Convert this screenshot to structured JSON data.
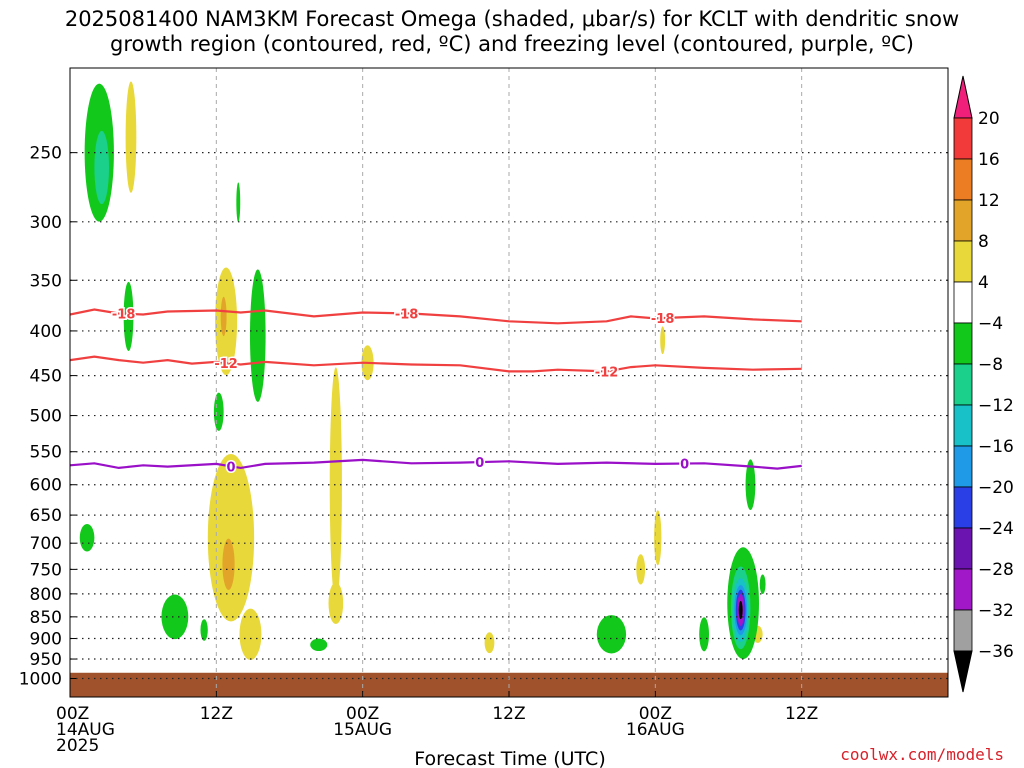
{
  "header": {
    "title_line1": "2025081400 NAM3KM Forecast Omega (shaded, μbar/s) for KCLT with dendritic snow",
    "title_line2": "growth region (contoured, red, ºC) and freezing level (contoured, purple, ºC)"
  },
  "footer": {
    "credit": "coolwx.com/models"
  },
  "chart_data": {
    "type": "heatmap",
    "xlabel": "Forecast Time (UTC)",
    "ylabel": "",
    "xlim": [
      0,
      36
    ],
    "ylim": [
      1050,
      200
    ],
    "y_scale": "log-pressure",
    "grid": true,
    "x_ticks": [
      {
        "x": 0,
        "lines": [
          "00Z",
          "14AUG",
          "2025"
        ]
      },
      {
        "x": 6,
        "lines": [
          "12Z"
        ]
      },
      {
        "x": 12,
        "lines": [
          "00Z",
          "15AUG"
        ]
      },
      {
        "x": 18,
        "lines": [
          "12Z"
        ]
      },
      {
        "x": 24,
        "lines": [
          "00Z",
          "16AUG"
        ]
      },
      {
        "x": 30,
        "lines": [
          "12Z"
        ]
      }
    ],
    "y_ticks": [
      250,
      300,
      350,
      400,
      450,
      500,
      550,
      600,
      650,
      700,
      750,
      800,
      850,
      900,
      950,
      1000
    ],
    "colorbar": {
      "labels": [
        "20",
        "16",
        "12",
        "8",
        "4",
        "−4",
        "−8",
        "−12",
        "−16",
        "−20",
        "−24",
        "−28",
        "−32",
        "−36"
      ],
      "colors": [
        "#f0207a",
        "#f23a3a",
        "#ed7d22",
        "#e2a52a",
        "#e8d83a",
        "#ffffff",
        "#12c81a",
        "#1ad08a",
        "#18c0c8",
        "#1f9ae6",
        "#2a40e6",
        "#6c14b0",
        "#a018c8",
        "#a0a0a0",
        "#000000"
      ]
    },
    "contours": [
      {
        "level_label": "-18",
        "color": "#f04040",
        "points": [
          [
            0,
            383
          ],
          [
            1,
            378
          ],
          [
            2,
            382
          ],
          [
            3,
            383
          ],
          [
            4,
            380
          ],
          [
            6,
            379
          ],
          [
            7,
            381
          ],
          [
            8,
            379
          ],
          [
            10,
            385
          ],
          [
            12,
            381
          ],
          [
            14,
            382
          ],
          [
            16,
            385
          ],
          [
            18,
            390
          ],
          [
            20,
            392
          ],
          [
            22,
            390
          ],
          [
            23,
            385
          ],
          [
            24,
            387
          ],
          [
            26,
            385
          ],
          [
            28,
            388
          ],
          [
            30,
            390
          ]
        ],
        "label_x": [
          2.2,
          13.8,
          24.3
        ]
      },
      {
        "level_label": "-12",
        "color": "#f04040",
        "points": [
          [
            0,
            432
          ],
          [
            1,
            428
          ],
          [
            2,
            432
          ],
          [
            3,
            435
          ],
          [
            4,
            432
          ],
          [
            5,
            436
          ],
          [
            6,
            434
          ],
          [
            7,
            437
          ],
          [
            8,
            434
          ],
          [
            10,
            438
          ],
          [
            12,
            435
          ],
          [
            14,
            437
          ],
          [
            16,
            438
          ],
          [
            18,
            445
          ],
          [
            19,
            445
          ],
          [
            20,
            443
          ],
          [
            22,
            445
          ],
          [
            23,
            440
          ],
          [
            24,
            438
          ],
          [
            26,
            441
          ],
          [
            28,
            443
          ],
          [
            30,
            442
          ]
        ],
        "label_x": [
          6.4,
          22.0
        ]
      },
      {
        "level_label": "0",
        "color": "#9a10c8",
        "points": [
          [
            0,
            570
          ],
          [
            1,
            567
          ],
          [
            2,
            574
          ],
          [
            3,
            570
          ],
          [
            4,
            572
          ],
          [
            6,
            568
          ],
          [
            7,
            574
          ],
          [
            8,
            568
          ],
          [
            10,
            566
          ],
          [
            12,
            562
          ],
          [
            14,
            567
          ],
          [
            16,
            566
          ],
          [
            18,
            564
          ],
          [
            20,
            568
          ],
          [
            22,
            566
          ],
          [
            24,
            568
          ],
          [
            26,
            567
          ],
          [
            28,
            572
          ],
          [
            29,
            575
          ],
          [
            30,
            571
          ]
        ],
        "label_x": [
          6.6,
          16.8,
          25.2
        ]
      }
    ],
    "shaded_regions": [
      {
        "level": 4,
        "color": "#e8d83a",
        "x": 2.5,
        "y": 240,
        "rx": 0.22,
        "ry_hpa": 35
      },
      {
        "level": 4,
        "color": "#e8d83a",
        "x": 6.4,
        "y": 390,
        "rx": 0.45,
        "ry_hpa": 55
      },
      {
        "level": 4,
        "color": "#e8d83a",
        "x": 6.6,
        "y": 690,
        "rx": 0.95,
        "ry_hpa": 150
      },
      {
        "level": 4,
        "color": "#e8d83a",
        "x": 7.4,
        "y": 890,
        "rx": 0.45,
        "ry_hpa": 60
      },
      {
        "level": 4,
        "color": "#e8d83a",
        "x": 10.9,
        "y": 600,
        "rx": 0.25,
        "ry_hpa": 180
      },
      {
        "level": 4,
        "color": "#e8d83a",
        "x": 10.9,
        "y": 820,
        "rx": 0.3,
        "ry_hpa": 45
      },
      {
        "level": 4,
        "color": "#e8d83a",
        "x": 12.2,
        "y": 435,
        "rx": 0.25,
        "ry_hpa": 20
      },
      {
        "level": 4,
        "color": "#e8d83a",
        "x": 17.2,
        "y": 910,
        "rx": 0.2,
        "ry_hpa": 25
      },
      {
        "level": 4,
        "color": "#e8d83a",
        "x": 23.4,
        "y": 750,
        "rx": 0.18,
        "ry_hpa": 30
      },
      {
        "level": 4,
        "color": "#e8d83a",
        "x": 24.1,
        "y": 690,
        "rx": 0.15,
        "ry_hpa": 50
      },
      {
        "level": 4,
        "color": "#e8d83a",
        "x": 24.3,
        "y": 410,
        "rx": 0.1,
        "ry_hpa": 15
      },
      {
        "level": 4,
        "color": "#e8d83a",
        "x": 28.2,
        "y": 890,
        "rx": 0.2,
        "ry_hpa": 20
      },
      {
        "level": 8,
        "color": "#e2a52a",
        "x": 6.5,
        "y": 740,
        "rx": 0.25,
        "ry_hpa": 50
      },
      {
        "level": 8,
        "color": "#e2a52a",
        "x": 6.3,
        "y": 385,
        "rx": 0.12,
        "ry_hpa": 20
      },
      {
        "level": -4,
        "color": "#12c81a",
        "x": 1.2,
        "y": 250,
        "rx": 0.6,
        "ry_hpa": 45
      },
      {
        "level": -4,
        "color": "#12c81a",
        "x": 2.4,
        "y": 385,
        "rx": 0.2,
        "ry_hpa": 35
      },
      {
        "level": -4,
        "color": "#12c81a",
        "x": 7.7,
        "y": 405,
        "rx": 0.32,
        "ry_hpa": 70
      },
      {
        "level": -4,
        "color": "#12c81a",
        "x": 6.9,
        "y": 285,
        "rx": 0.08,
        "ry_hpa": 15
      },
      {
        "level": -4,
        "color": "#12c81a",
        "x": 6.1,
        "y": 495,
        "rx": 0.2,
        "ry_hpa": 25
      },
      {
        "level": -4,
        "color": "#12c81a",
        "x": 4.3,
        "y": 850,
        "rx": 0.55,
        "ry_hpa": 50
      },
      {
        "level": -4,
        "color": "#12c81a",
        "x": 0.7,
        "y": 690,
        "rx": 0.3,
        "ry_hpa": 25
      },
      {
        "level": -4,
        "color": "#12c81a",
        "x": 5.5,
        "y": 880,
        "rx": 0.15,
        "ry_hpa": 25
      },
      {
        "level": -4,
        "color": "#12c81a",
        "x": 10.2,
        "y": 915,
        "rx": 0.35,
        "ry_hpa": 15
      },
      {
        "level": -4,
        "color": "#12c81a",
        "x": 22.2,
        "y": 890,
        "rx": 0.6,
        "ry_hpa": 45
      },
      {
        "level": -4,
        "color": "#12c81a",
        "x": 27.6,
        "y": 820,
        "rx": 0.65,
        "ry_hpa": 120
      },
      {
        "level": -4,
        "color": "#12c81a",
        "x": 27.9,
        "y": 600,
        "rx": 0.2,
        "ry_hpa": 40
      },
      {
        "level": -4,
        "color": "#12c81a",
        "x": 28.4,
        "y": 780,
        "rx": 0.12,
        "ry_hpa": 20
      },
      {
        "level": -4,
        "color": "#12c81a",
        "x": 26.0,
        "y": 890,
        "rx": 0.2,
        "ry_hpa": 40
      },
      {
        "level": -8,
        "color": "#1ad08a",
        "x": 1.3,
        "y": 260,
        "rx": 0.3,
        "ry_hpa": 25
      },
      {
        "level": -8,
        "color": "#1ad08a",
        "x": 27.5,
        "y": 830,
        "rx": 0.4,
        "ry_hpa": 90
      },
      {
        "level": -12,
        "color": "#18c0c8",
        "x": 27.5,
        "y": 835,
        "rx": 0.32,
        "ry_hpa": 70
      },
      {
        "level": -16,
        "color": "#1f9ae6",
        "x": 27.5,
        "y": 835,
        "rx": 0.26,
        "ry_hpa": 55
      },
      {
        "level": -20,
        "color": "#2a40e6",
        "x": 27.5,
        "y": 835,
        "rx": 0.2,
        "ry_hpa": 45
      },
      {
        "level": -28,
        "color": "#a018c8",
        "x": 27.5,
        "y": 835,
        "rx": 0.15,
        "ry_hpa": 35
      },
      {
        "level": -32,
        "color": "#000000",
        "x": 27.5,
        "y": 835,
        "rx": 0.08,
        "ry_hpa": 20
      }
    ],
    "terrain": {
      "color": "#a0522d",
      "top_pressure": 985
    }
  }
}
